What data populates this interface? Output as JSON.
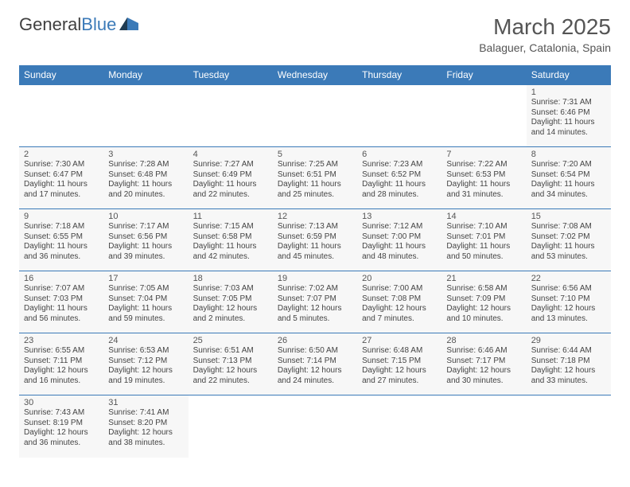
{
  "logo": {
    "general": "General",
    "blue": "Blue"
  },
  "title": "March 2025",
  "location": "Balaguer, Catalonia, Spain",
  "dow": [
    "Sunday",
    "Monday",
    "Tuesday",
    "Wednesday",
    "Thursday",
    "Friday",
    "Saturday"
  ],
  "colors": {
    "header_bg": "#3b7ab8",
    "header_text": "#ffffff",
    "cell_bg": "#f7f7f7",
    "border": "#3b7ab8",
    "text": "#444444"
  },
  "layout": {
    "columns": 7,
    "rows": 6
  },
  "weeks": [
    [
      null,
      null,
      null,
      null,
      null,
      null,
      {
        "n": "1",
        "sr": "Sunrise: 7:31 AM",
        "ss": "Sunset: 6:46 PM",
        "d1": "Daylight: 11 hours",
        "d2": "and 14 minutes."
      }
    ],
    [
      {
        "n": "2",
        "sr": "Sunrise: 7:30 AM",
        "ss": "Sunset: 6:47 PM",
        "d1": "Daylight: 11 hours",
        "d2": "and 17 minutes."
      },
      {
        "n": "3",
        "sr": "Sunrise: 7:28 AM",
        "ss": "Sunset: 6:48 PM",
        "d1": "Daylight: 11 hours",
        "d2": "and 20 minutes."
      },
      {
        "n": "4",
        "sr": "Sunrise: 7:27 AM",
        "ss": "Sunset: 6:49 PM",
        "d1": "Daylight: 11 hours",
        "d2": "and 22 minutes."
      },
      {
        "n": "5",
        "sr": "Sunrise: 7:25 AM",
        "ss": "Sunset: 6:51 PM",
        "d1": "Daylight: 11 hours",
        "d2": "and 25 minutes."
      },
      {
        "n": "6",
        "sr": "Sunrise: 7:23 AM",
        "ss": "Sunset: 6:52 PM",
        "d1": "Daylight: 11 hours",
        "d2": "and 28 minutes."
      },
      {
        "n": "7",
        "sr": "Sunrise: 7:22 AM",
        "ss": "Sunset: 6:53 PM",
        "d1": "Daylight: 11 hours",
        "d2": "and 31 minutes."
      },
      {
        "n": "8",
        "sr": "Sunrise: 7:20 AM",
        "ss": "Sunset: 6:54 PM",
        "d1": "Daylight: 11 hours",
        "d2": "and 34 minutes."
      }
    ],
    [
      {
        "n": "9",
        "sr": "Sunrise: 7:18 AM",
        "ss": "Sunset: 6:55 PM",
        "d1": "Daylight: 11 hours",
        "d2": "and 36 minutes."
      },
      {
        "n": "10",
        "sr": "Sunrise: 7:17 AM",
        "ss": "Sunset: 6:56 PM",
        "d1": "Daylight: 11 hours",
        "d2": "and 39 minutes."
      },
      {
        "n": "11",
        "sr": "Sunrise: 7:15 AM",
        "ss": "Sunset: 6:58 PM",
        "d1": "Daylight: 11 hours",
        "d2": "and 42 minutes."
      },
      {
        "n": "12",
        "sr": "Sunrise: 7:13 AM",
        "ss": "Sunset: 6:59 PM",
        "d1": "Daylight: 11 hours",
        "d2": "and 45 minutes."
      },
      {
        "n": "13",
        "sr": "Sunrise: 7:12 AM",
        "ss": "Sunset: 7:00 PM",
        "d1": "Daylight: 11 hours",
        "d2": "and 48 minutes."
      },
      {
        "n": "14",
        "sr": "Sunrise: 7:10 AM",
        "ss": "Sunset: 7:01 PM",
        "d1": "Daylight: 11 hours",
        "d2": "and 50 minutes."
      },
      {
        "n": "15",
        "sr": "Sunrise: 7:08 AM",
        "ss": "Sunset: 7:02 PM",
        "d1": "Daylight: 11 hours",
        "d2": "and 53 minutes."
      }
    ],
    [
      {
        "n": "16",
        "sr": "Sunrise: 7:07 AM",
        "ss": "Sunset: 7:03 PM",
        "d1": "Daylight: 11 hours",
        "d2": "and 56 minutes."
      },
      {
        "n": "17",
        "sr": "Sunrise: 7:05 AM",
        "ss": "Sunset: 7:04 PM",
        "d1": "Daylight: 11 hours",
        "d2": "and 59 minutes."
      },
      {
        "n": "18",
        "sr": "Sunrise: 7:03 AM",
        "ss": "Sunset: 7:05 PM",
        "d1": "Daylight: 12 hours",
        "d2": "and 2 minutes."
      },
      {
        "n": "19",
        "sr": "Sunrise: 7:02 AM",
        "ss": "Sunset: 7:07 PM",
        "d1": "Daylight: 12 hours",
        "d2": "and 5 minutes."
      },
      {
        "n": "20",
        "sr": "Sunrise: 7:00 AM",
        "ss": "Sunset: 7:08 PM",
        "d1": "Daylight: 12 hours",
        "d2": "and 7 minutes."
      },
      {
        "n": "21",
        "sr": "Sunrise: 6:58 AM",
        "ss": "Sunset: 7:09 PM",
        "d1": "Daylight: 12 hours",
        "d2": "and 10 minutes."
      },
      {
        "n": "22",
        "sr": "Sunrise: 6:56 AM",
        "ss": "Sunset: 7:10 PM",
        "d1": "Daylight: 12 hours",
        "d2": "and 13 minutes."
      }
    ],
    [
      {
        "n": "23",
        "sr": "Sunrise: 6:55 AM",
        "ss": "Sunset: 7:11 PM",
        "d1": "Daylight: 12 hours",
        "d2": "and 16 minutes."
      },
      {
        "n": "24",
        "sr": "Sunrise: 6:53 AM",
        "ss": "Sunset: 7:12 PM",
        "d1": "Daylight: 12 hours",
        "d2": "and 19 minutes."
      },
      {
        "n": "25",
        "sr": "Sunrise: 6:51 AM",
        "ss": "Sunset: 7:13 PM",
        "d1": "Daylight: 12 hours",
        "d2": "and 22 minutes."
      },
      {
        "n": "26",
        "sr": "Sunrise: 6:50 AM",
        "ss": "Sunset: 7:14 PM",
        "d1": "Daylight: 12 hours",
        "d2": "and 24 minutes."
      },
      {
        "n": "27",
        "sr": "Sunrise: 6:48 AM",
        "ss": "Sunset: 7:15 PM",
        "d1": "Daylight: 12 hours",
        "d2": "and 27 minutes."
      },
      {
        "n": "28",
        "sr": "Sunrise: 6:46 AM",
        "ss": "Sunset: 7:17 PM",
        "d1": "Daylight: 12 hours",
        "d2": "and 30 minutes."
      },
      {
        "n": "29",
        "sr": "Sunrise: 6:44 AM",
        "ss": "Sunset: 7:18 PM",
        "d1": "Daylight: 12 hours",
        "d2": "and 33 minutes."
      }
    ],
    [
      {
        "n": "30",
        "sr": "Sunrise: 7:43 AM",
        "ss": "Sunset: 8:19 PM",
        "d1": "Daylight: 12 hours",
        "d2": "and 36 minutes."
      },
      {
        "n": "31",
        "sr": "Sunrise: 7:41 AM",
        "ss": "Sunset: 8:20 PM",
        "d1": "Daylight: 12 hours",
        "d2": "and 38 minutes."
      },
      null,
      null,
      null,
      null,
      null
    ]
  ]
}
